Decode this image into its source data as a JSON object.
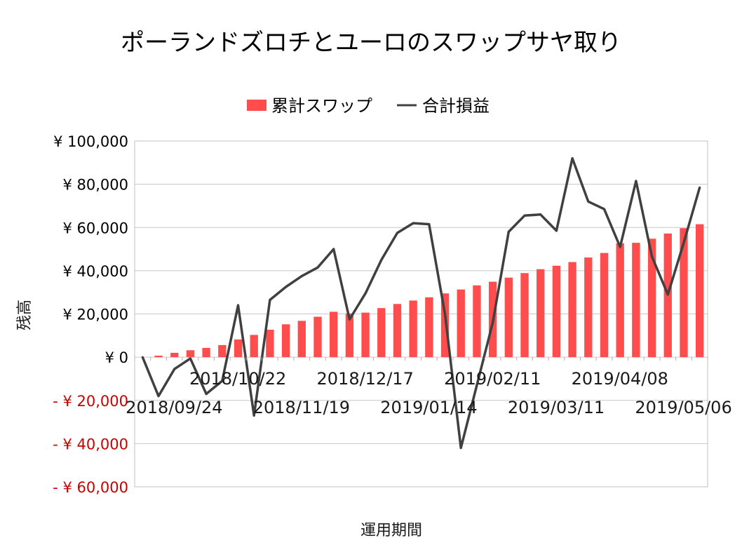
{
  "chart_data": {
    "type": "bar+line",
    "title": "ポーランドズロチとユーロのスワップサヤ取り",
    "xlabel": "運用期間",
    "ylabel": "残高",
    "ylim": [
      -60000,
      100000
    ],
    "y_ticks": [
      {
        "value": 100000,
        "label": "¥ 100,000",
        "color": "#000000"
      },
      {
        "value": 80000,
        "label": "¥ 80,000",
        "color": "#000000"
      },
      {
        "value": 60000,
        "label": "¥ 60,000",
        "color": "#000000"
      },
      {
        "value": 40000,
        "label": "¥ 40,000",
        "color": "#000000"
      },
      {
        "value": 20000,
        "label": "¥ 20,000",
        "color": "#000000"
      },
      {
        "value": 0,
        "label": "¥ 0",
        "color": "#000000"
      },
      {
        "value": -20000,
        "label": "- ¥ 20,000",
        "color": "#cc0000"
      },
      {
        "value": -40000,
        "label": "- ¥ 40,000",
        "color": "#cc0000"
      },
      {
        "value": -60000,
        "label": "- ¥ 60,000",
        "color": "#cc0000"
      }
    ],
    "x_tick_labels": [
      {
        "index": 0,
        "label": "2018/09/24",
        "row": 2
      },
      {
        "index": 4,
        "label": "2018/10/22",
        "row": 1
      },
      {
        "index": 8,
        "label": "2018/11/19",
        "row": 2
      },
      {
        "index": 12,
        "label": "2018/12/17",
        "row": 1
      },
      {
        "index": 16,
        "label": "2019/01/14",
        "row": 2
      },
      {
        "index": 20,
        "label": "2019/02/11",
        "row": 1
      },
      {
        "index": 24,
        "label": "2019/03/11",
        "row": 2
      },
      {
        "index": 28,
        "label": "2019/04/08",
        "row": 1
      },
      {
        "index": 32,
        "label": "2019/05/06",
        "row": 2
      }
    ],
    "series": [
      {
        "name": "累計スワップ",
        "kind": "bar",
        "color": "#ff4d4d",
        "values": [
          0,
          700,
          2000,
          3200,
          4300,
          5600,
          8200,
          10300,
          12700,
          15200,
          16800,
          18700,
          21000,
          20200,
          20600,
          22700,
          24600,
          26200,
          27700,
          29500,
          31300,
          33200,
          34900,
          36800,
          38900,
          40700,
          42300,
          44000,
          46100,
          48200,
          52700,
          52900,
          54800,
          57200,
          59700,
          61500
        ]
      },
      {
        "name": "合計損益",
        "kind": "line",
        "color": "#404040",
        "values": [
          0,
          -18000,
          -5500,
          -600,
          -17000,
          -11000,
          24000,
          -27000,
          26500,
          32500,
          37500,
          41500,
          50000,
          17500,
          29500,
          45000,
          57500,
          62000,
          61500,
          20000,
          -42000,
          -13000,
          16000,
          58000,
          65500,
          66000,
          58500,
          92000,
          72000,
          68500,
          51000,
          81500,
          46500,
          29000,
          53000,
          78500
        ]
      }
    ]
  }
}
